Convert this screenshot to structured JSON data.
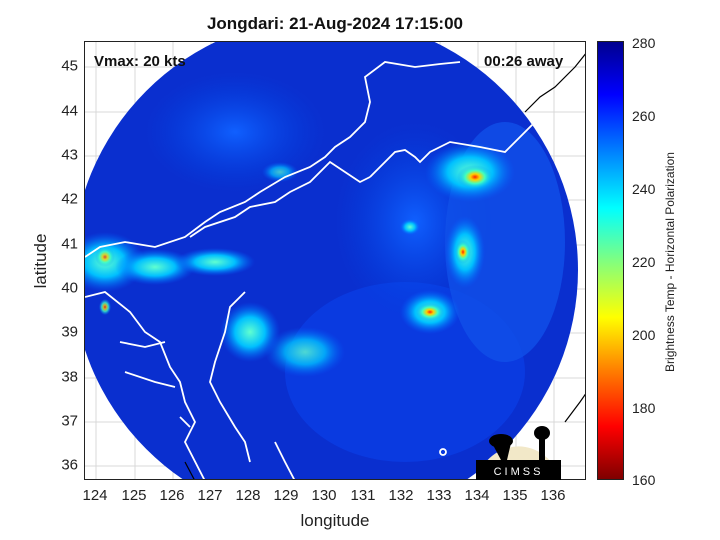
{
  "title": "Jongdari: 21-Aug-2024 17:15:00",
  "vmax": "Vmax: 20 kts",
  "away": "00:26 away",
  "xlabel": "longitude",
  "ylabel": "latitude",
  "x_ticks": [
    "124",
    "125",
    "126",
    "127",
    "128",
    "129",
    "130",
    "131",
    "132",
    "133",
    "134",
    "135",
    "136"
  ],
  "y_ticks": [
    "45",
    "44",
    "43",
    "42",
    "41",
    "40",
    "39",
    "38",
    "37",
    "36"
  ],
  "colorbar": {
    "label": "Brightness Temp - Horizontal Polarization",
    "ticks": [
      "280",
      "260",
      "240",
      "220",
      "200",
      "180",
      "160"
    ],
    "min": 160,
    "max": 280
  },
  "logo_text": "CIMSS",
  "chart_data": {
    "type": "heatmap",
    "title": "Jongdari: 21-Aug-2024 17:15:00",
    "xlabel": "longitude",
    "ylabel": "latitude",
    "xlim": [
      123.7,
      136.8
    ],
    "ylim": [
      35.6,
      45.5
    ],
    "colorbar_range": [
      160,
      280
    ],
    "annotations": [
      "Vmax: 20 kts",
      "00:26 away"
    ],
    "grid": true
  }
}
